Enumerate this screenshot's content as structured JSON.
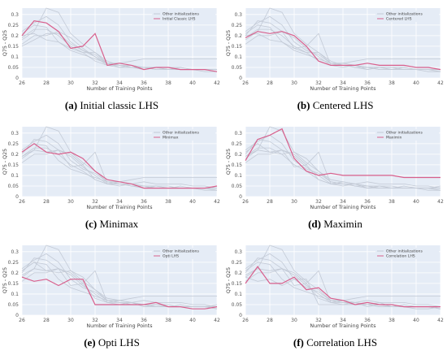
{
  "colors": {
    "plot_bg": "#e5ecf6",
    "grid": "#ffffff",
    "others": "#c3cad6",
    "highlight": "#d85f8c"
  },
  "figure": {
    "legend_others": "Other initializations",
    "xlabel": "Number of Training Points",
    "ylabel": "Q75 - Q25"
  },
  "chart_data": [
    {
      "type": "line",
      "label": "(a)",
      "caption": "Initial classic LHS",
      "legend_highlight": "Initial Classic LHS",
      "x": [
        26,
        27,
        28,
        29,
        30,
        31,
        32,
        33,
        34,
        35,
        36,
        37,
        38,
        39,
        40,
        41,
        42
      ],
      "xlim": [
        26,
        42
      ],
      "ylim": [
        0,
        0.33
      ],
      "xticks": [
        26,
        28,
        30,
        32,
        34,
        36,
        38,
        40,
        42
      ],
      "yticks": [
        0,
        0.05,
        0.1,
        0.15,
        0.2,
        0.25,
        0.3
      ],
      "grid": true,
      "legend_position": "top-right",
      "highlight": [
        0.2,
        0.27,
        0.26,
        0.22,
        0.14,
        0.15,
        0.21,
        0.06,
        0.07,
        0.06,
        0.04,
        0.05,
        0.05,
        0.04,
        0.04,
        0.04,
        0.03
      ],
      "others": [
        [
          0.22,
          0.26,
          0.29,
          0.25,
          0.17,
          0.13,
          0.11,
          0.07,
          0.06,
          0.06,
          0.05,
          0.04,
          0.04,
          0.04,
          0.04,
          0.04,
          0.03
        ],
        [
          0.18,
          0.22,
          0.33,
          0.31,
          0.21,
          0.16,
          0.12,
          0.07,
          0.06,
          0.05,
          0.05,
          0.05,
          0.04,
          0.04,
          0.04,
          0.04,
          0.04
        ],
        [
          0.16,
          0.2,
          0.2,
          0.22,
          0.19,
          0.14,
          0.1,
          0.06,
          0.05,
          0.06,
          0.05,
          0.04,
          0.04,
          0.05,
          0.04,
          0.04,
          0.04
        ],
        [
          0.19,
          0.23,
          0.23,
          0.2,
          0.15,
          0.12,
          0.08,
          0.06,
          0.06,
          0.05,
          0.04,
          0.05,
          0.04,
          0.04,
          0.04,
          0.03,
          0.03
        ],
        [
          0.21,
          0.25,
          0.24,
          0.17,
          0.13,
          0.11,
          0.09,
          0.07,
          0.07,
          0.08,
          0.09,
          0.09,
          0.09,
          0.09,
          0.09,
          0.09,
          0.09
        ],
        [
          0.15,
          0.18,
          0.21,
          0.21,
          0.16,
          0.13,
          0.1,
          0.07,
          0.05,
          0.05,
          0.05,
          0.05,
          0.04,
          0.04,
          0.04,
          0.04,
          0.04
        ],
        [
          0.2,
          0.21,
          0.18,
          0.17,
          0.14,
          0.12,
          0.12,
          0.08,
          0.06,
          0.06,
          0.05,
          0.05,
          0.05,
          0.05,
          0.04,
          0.04,
          0.04
        ]
      ]
    },
    {
      "type": "line",
      "label": "(b)",
      "caption": "Centered LHS",
      "legend_highlight": "Centered LHS",
      "x": [
        26,
        27,
        28,
        29,
        30,
        31,
        32,
        33,
        34,
        35,
        36,
        37,
        38,
        39,
        40,
        41,
        42
      ],
      "xlim": [
        26,
        42
      ],
      "ylim": [
        0,
        0.33
      ],
      "xticks": [
        26,
        28,
        30,
        32,
        34,
        36,
        38,
        40,
        42
      ],
      "yticks": [
        0,
        0.05,
        0.1,
        0.15,
        0.2,
        0.25,
        0.3
      ],
      "grid": true,
      "legend_position": "top-right",
      "highlight": [
        0.19,
        0.22,
        0.21,
        0.22,
        0.2,
        0.15,
        0.08,
        0.06,
        0.06,
        0.06,
        0.07,
        0.06,
        0.06,
        0.06,
        0.05,
        0.05,
        0.04
      ],
      "others": [
        [
          0.22,
          0.26,
          0.29,
          0.25,
          0.17,
          0.13,
          0.11,
          0.07,
          0.06,
          0.06,
          0.05,
          0.04,
          0.04,
          0.04,
          0.04,
          0.04,
          0.03
        ],
        [
          0.18,
          0.22,
          0.33,
          0.31,
          0.21,
          0.16,
          0.12,
          0.07,
          0.06,
          0.05,
          0.05,
          0.05,
          0.04,
          0.04,
          0.04,
          0.04,
          0.04
        ],
        [
          0.16,
          0.2,
          0.2,
          0.22,
          0.19,
          0.14,
          0.1,
          0.06,
          0.05,
          0.06,
          0.05,
          0.04,
          0.04,
          0.05,
          0.04,
          0.04,
          0.04
        ],
        [
          0.19,
          0.23,
          0.23,
          0.2,
          0.15,
          0.12,
          0.08,
          0.06,
          0.06,
          0.05,
          0.04,
          0.05,
          0.04,
          0.04,
          0.04,
          0.03,
          0.03
        ],
        [
          0.21,
          0.25,
          0.24,
          0.17,
          0.13,
          0.11,
          0.09,
          0.07,
          0.07,
          0.08,
          0.09,
          0.09,
          0.09,
          0.09,
          0.09,
          0.09,
          0.09
        ],
        [
          0.2,
          0.27,
          0.26,
          0.22,
          0.14,
          0.15,
          0.21,
          0.06,
          0.07,
          0.06,
          0.04,
          0.05,
          0.05,
          0.04,
          0.04,
          0.04,
          0.03
        ],
        [
          0.2,
          0.21,
          0.18,
          0.17,
          0.14,
          0.12,
          0.12,
          0.08,
          0.06,
          0.06,
          0.05,
          0.05,
          0.05,
          0.05,
          0.04,
          0.04,
          0.04
        ]
      ]
    },
    {
      "type": "line",
      "label": "(c)",
      "caption": "Minimax",
      "legend_highlight": "Minimax",
      "x": [
        26,
        27,
        28,
        29,
        30,
        31,
        32,
        33,
        34,
        35,
        36,
        37,
        38,
        39,
        40,
        41,
        42
      ],
      "xlim": [
        26,
        42
      ],
      "ylim": [
        0,
        0.33
      ],
      "xticks": [
        26,
        28,
        30,
        32,
        34,
        36,
        38,
        40,
        42
      ],
      "yticks": [
        0,
        0.05,
        0.1,
        0.15,
        0.2,
        0.25,
        0.3
      ],
      "grid": true,
      "legend_position": "top-right",
      "highlight": [
        0.21,
        0.25,
        0.21,
        0.2,
        0.21,
        0.18,
        0.12,
        0.08,
        0.07,
        0.06,
        0.04,
        0.04,
        0.04,
        0.04,
        0.04,
        0.04,
        0.05
      ],
      "others": [
        [
          0.22,
          0.26,
          0.29,
          0.25,
          0.17,
          0.13,
          0.11,
          0.07,
          0.06,
          0.06,
          0.05,
          0.04,
          0.04,
          0.04,
          0.04,
          0.04,
          0.03
        ],
        [
          0.18,
          0.22,
          0.33,
          0.31,
          0.21,
          0.16,
          0.12,
          0.07,
          0.06,
          0.05,
          0.05,
          0.05,
          0.04,
          0.04,
          0.04,
          0.04,
          0.04
        ],
        [
          0.16,
          0.2,
          0.2,
          0.22,
          0.19,
          0.14,
          0.1,
          0.06,
          0.05,
          0.06,
          0.05,
          0.04,
          0.04,
          0.05,
          0.04,
          0.04,
          0.04
        ],
        [
          0.19,
          0.23,
          0.23,
          0.2,
          0.15,
          0.12,
          0.08,
          0.06,
          0.06,
          0.05,
          0.04,
          0.05,
          0.04,
          0.04,
          0.04,
          0.03,
          0.03
        ],
        [
          0.21,
          0.25,
          0.24,
          0.17,
          0.13,
          0.11,
          0.09,
          0.07,
          0.07,
          0.08,
          0.09,
          0.09,
          0.09,
          0.09,
          0.09,
          0.09,
          0.09
        ],
        [
          0.2,
          0.27,
          0.26,
          0.22,
          0.14,
          0.15,
          0.21,
          0.06,
          0.07,
          0.06,
          0.04,
          0.05,
          0.05,
          0.04,
          0.04,
          0.04,
          0.03
        ],
        [
          0.19,
          0.22,
          0.21,
          0.22,
          0.2,
          0.15,
          0.08,
          0.06,
          0.06,
          0.06,
          0.07,
          0.06,
          0.06,
          0.06,
          0.05,
          0.05,
          0.04
        ]
      ]
    },
    {
      "type": "line",
      "label": "(d)",
      "caption": "Maximin",
      "legend_highlight": "Maximin",
      "x": [
        26,
        27,
        28,
        29,
        30,
        31,
        32,
        33,
        34,
        35,
        36,
        37,
        38,
        39,
        40,
        41,
        42
      ],
      "xlim": [
        26,
        42
      ],
      "ylim": [
        0,
        0.33
      ],
      "xticks": [
        26,
        28,
        30,
        32,
        34,
        36,
        38,
        40,
        42
      ],
      "yticks": [
        0,
        0.05,
        0.1,
        0.15,
        0.2,
        0.25,
        0.3
      ],
      "grid": true,
      "legend_position": "top-right",
      "highlight": [
        0.17,
        0.27,
        0.29,
        0.32,
        0.18,
        0.12,
        0.1,
        0.11,
        0.1,
        0.1,
        0.1,
        0.1,
        0.1,
        0.09,
        0.09,
        0.09,
        0.09
      ],
      "others": [
        [
          0.22,
          0.26,
          0.29,
          0.25,
          0.17,
          0.13,
          0.11,
          0.07,
          0.06,
          0.06,
          0.05,
          0.04,
          0.04,
          0.04,
          0.04,
          0.04,
          0.03
        ],
        [
          0.18,
          0.22,
          0.33,
          0.31,
          0.21,
          0.16,
          0.12,
          0.07,
          0.06,
          0.05,
          0.05,
          0.05,
          0.04,
          0.04,
          0.04,
          0.04,
          0.04
        ],
        [
          0.16,
          0.2,
          0.2,
          0.22,
          0.19,
          0.14,
          0.1,
          0.06,
          0.05,
          0.06,
          0.05,
          0.04,
          0.04,
          0.05,
          0.04,
          0.04,
          0.04
        ],
        [
          0.19,
          0.23,
          0.23,
          0.2,
          0.15,
          0.12,
          0.08,
          0.06,
          0.06,
          0.05,
          0.04,
          0.05,
          0.04,
          0.04,
          0.04,
          0.03,
          0.03
        ],
        [
          0.2,
          0.27,
          0.26,
          0.22,
          0.14,
          0.15,
          0.21,
          0.06,
          0.07,
          0.06,
          0.04,
          0.05,
          0.05,
          0.04,
          0.04,
          0.04,
          0.03
        ],
        [
          0.19,
          0.22,
          0.21,
          0.22,
          0.2,
          0.15,
          0.08,
          0.06,
          0.06,
          0.06,
          0.07,
          0.06,
          0.06,
          0.06,
          0.05,
          0.05,
          0.04
        ],
        [
          0.21,
          0.25,
          0.21,
          0.2,
          0.21,
          0.18,
          0.12,
          0.08,
          0.07,
          0.06,
          0.04,
          0.04,
          0.04,
          0.04,
          0.04,
          0.04,
          0.05
        ]
      ]
    },
    {
      "type": "line",
      "label": "(e)",
      "caption": "Opti LHS",
      "legend_highlight": "Opti LHS",
      "x": [
        26,
        27,
        28,
        29,
        30,
        31,
        32,
        33,
        34,
        35,
        36,
        37,
        38,
        39,
        40,
        41,
        42
      ],
      "xlim": [
        26,
        42
      ],
      "ylim": [
        0,
        0.33
      ],
      "xticks": [
        26,
        28,
        30,
        32,
        34,
        36,
        38,
        40,
        42
      ],
      "yticks": [
        0,
        0.05,
        0.1,
        0.15,
        0.2,
        0.25,
        0.3
      ],
      "grid": true,
      "legend_position": "top-right",
      "highlight": [
        0.18,
        0.16,
        0.17,
        0.14,
        0.17,
        0.17,
        0.05,
        0.05,
        0.05,
        0.05,
        0.05,
        0.06,
        0.04,
        0.04,
        0.03,
        0.03,
        0.04
      ],
      "others": [
        [
          0.22,
          0.26,
          0.29,
          0.25,
          0.17,
          0.13,
          0.11,
          0.07,
          0.06,
          0.06,
          0.05,
          0.04,
          0.04,
          0.04,
          0.04,
          0.04,
          0.03
        ],
        [
          0.18,
          0.22,
          0.33,
          0.31,
          0.21,
          0.16,
          0.12,
          0.07,
          0.06,
          0.05,
          0.05,
          0.05,
          0.04,
          0.04,
          0.04,
          0.04,
          0.04
        ],
        [
          0.16,
          0.2,
          0.2,
          0.22,
          0.19,
          0.14,
          0.1,
          0.06,
          0.05,
          0.06,
          0.05,
          0.04,
          0.04,
          0.05,
          0.04,
          0.04,
          0.04
        ],
        [
          0.21,
          0.25,
          0.24,
          0.17,
          0.13,
          0.11,
          0.09,
          0.07,
          0.07,
          0.08,
          0.09,
          0.09,
          0.09,
          0.09,
          0.09,
          0.09,
          0.09
        ],
        [
          0.2,
          0.27,
          0.26,
          0.22,
          0.14,
          0.15,
          0.21,
          0.06,
          0.07,
          0.06,
          0.04,
          0.05,
          0.05,
          0.04,
          0.04,
          0.04,
          0.03
        ],
        [
          0.19,
          0.22,
          0.21,
          0.22,
          0.2,
          0.15,
          0.08,
          0.06,
          0.06,
          0.06,
          0.07,
          0.06,
          0.06,
          0.06,
          0.05,
          0.05,
          0.04
        ],
        [
          0.21,
          0.25,
          0.21,
          0.2,
          0.21,
          0.18,
          0.12,
          0.08,
          0.07,
          0.06,
          0.04,
          0.04,
          0.04,
          0.04,
          0.04,
          0.04,
          0.05
        ]
      ]
    },
    {
      "type": "line",
      "label": "(f)",
      "caption": "Correlation LHS",
      "legend_highlight": "Correlation LHS",
      "x": [
        26,
        27,
        28,
        29,
        30,
        31,
        32,
        33,
        34,
        35,
        36,
        37,
        38,
        39,
        40,
        41,
        42
      ],
      "xlim": [
        26,
        42
      ],
      "ylim": [
        0,
        0.33
      ],
      "xticks": [
        26,
        28,
        30,
        32,
        34,
        36,
        38,
        40,
        42
      ],
      "yticks": [
        0,
        0.05,
        0.1,
        0.15,
        0.2,
        0.25,
        0.3
      ],
      "grid": true,
      "legend_position": "top-right",
      "highlight": [
        0.15,
        0.23,
        0.15,
        0.15,
        0.18,
        0.12,
        0.13,
        0.08,
        0.07,
        0.05,
        0.06,
        0.05,
        0.05,
        0.04,
        0.04,
        0.04,
        0.04
      ],
      "others": [
        [
          0.22,
          0.26,
          0.29,
          0.25,
          0.17,
          0.13,
          0.11,
          0.07,
          0.06,
          0.06,
          0.05,
          0.04,
          0.04,
          0.04,
          0.04,
          0.04,
          0.03
        ],
        [
          0.18,
          0.22,
          0.33,
          0.31,
          0.21,
          0.16,
          0.12,
          0.07,
          0.06,
          0.05,
          0.05,
          0.05,
          0.04,
          0.04,
          0.04,
          0.04,
          0.04
        ],
        [
          0.16,
          0.2,
          0.2,
          0.22,
          0.19,
          0.14,
          0.1,
          0.06,
          0.05,
          0.06,
          0.05,
          0.04,
          0.04,
          0.05,
          0.04,
          0.04,
          0.04
        ],
        [
          0.21,
          0.25,
          0.24,
          0.17,
          0.13,
          0.11,
          0.09,
          0.07,
          0.07,
          0.08,
          0.09,
          0.09,
          0.09,
          0.09,
          0.09,
          0.09,
          0.09
        ],
        [
          0.2,
          0.27,
          0.26,
          0.22,
          0.14,
          0.15,
          0.21,
          0.06,
          0.07,
          0.06,
          0.04,
          0.05,
          0.05,
          0.04,
          0.04,
          0.04,
          0.03
        ],
        [
          0.19,
          0.22,
          0.21,
          0.22,
          0.2,
          0.15,
          0.08,
          0.06,
          0.06,
          0.06,
          0.07,
          0.06,
          0.06,
          0.06,
          0.05,
          0.05,
          0.04
        ],
        [
          0.18,
          0.16,
          0.17,
          0.14,
          0.17,
          0.17,
          0.05,
          0.05,
          0.05,
          0.05,
          0.05,
          0.06,
          0.04,
          0.04,
          0.03,
          0.03,
          0.04
        ]
      ]
    }
  ]
}
